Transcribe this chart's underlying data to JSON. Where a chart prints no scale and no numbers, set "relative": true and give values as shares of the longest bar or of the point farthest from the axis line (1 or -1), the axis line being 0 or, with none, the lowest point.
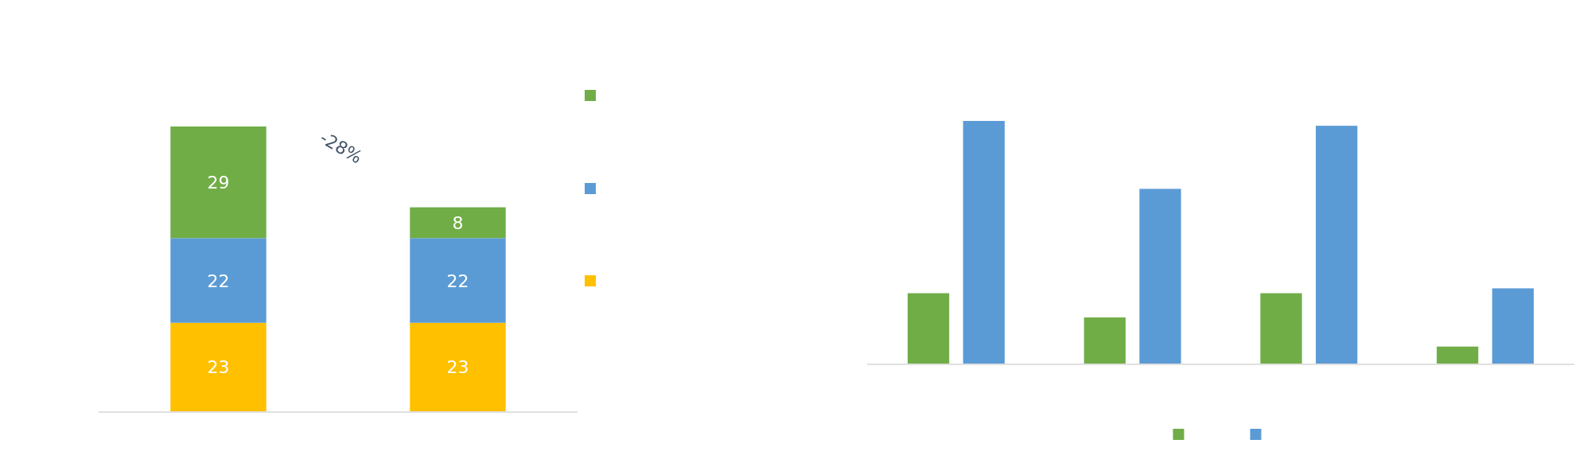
{
  "chart_data": [
    {
      "type": "bar",
      "stacked": true,
      "data_labels": true,
      "categories": [
        null,
        null
      ],
      "series": [
        {
          "color": "#ffc000",
          "values": [
            23,
            23
          ]
        },
        {
          "color": "#5b9bd5",
          "values": [
            22,
            22
          ]
        },
        {
          "color": "#70ad47",
          "values": [
            29,
            8
          ]
        }
      ],
      "annotations": [
        "-28%"
      ]
    },
    {
      "type": "bar",
      "relative": true,
      "categories": [
        null,
        null,
        null,
        null
      ],
      "series": [
        {
          "color": "#70ad47",
          "values": [
            0.29,
            0.19,
            0.29,
            0.07
          ]
        },
        {
          "color": "#5b9bd5",
          "values": [
            1,
            0.72,
            0.98,
            0.31
          ]
        }
      ]
    }
  ]
}
